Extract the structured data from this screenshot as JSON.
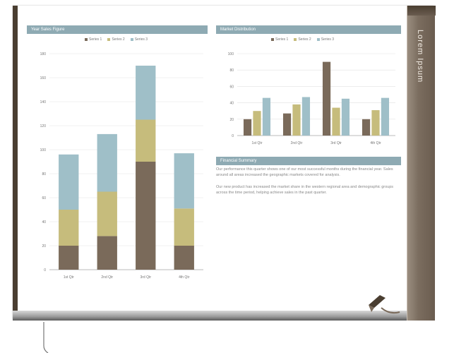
{
  "slide": {
    "side_title": "Lorem Ipsum",
    "left_panel_title": "Year Sales Figure",
    "right_panel_title": "Market Distribution",
    "notes_title": "Financial Summary",
    "notes": [
      "Our performance this quarter shows one of our most successful months during the financial year. Sales around all areas increased the geographic markets covered for analysis.",
      "Our new product has increased the market share in the western regional area and demographic groups across the time period, helping achieve sales in the past quarter."
    ]
  },
  "legend": [
    "Series 1",
    "Series 2",
    "Series 3"
  ],
  "colors": {
    "s1": "#7a6a5a",
    "s2": "#c6bc7c",
    "s3": "#9fbfc8",
    "header": "#8eaab3",
    "frame": "#4a3e31"
  },
  "chart_data": [
    {
      "type": "bar",
      "stacked": true,
      "title": "Year Sales Figure",
      "categories": [
        "1st Qtr",
        "2nd Qtr",
        "3rd Qtr",
        "4th Qtr"
      ],
      "series": [
        {
          "name": "Series 1",
          "values": [
            20,
            28,
            90,
            20
          ]
        },
        {
          "name": "Series 2",
          "values": [
            30,
            37,
            35,
            31
          ]
        },
        {
          "name": "Series 3",
          "values": [
            46,
            48,
            45,
            46
          ]
        }
      ],
      "ylim": [
        0,
        180
      ],
      "yticks": [
        0,
        20,
        40,
        60,
        80,
        100,
        120,
        140,
        160,
        180
      ],
      "grid": true,
      "legend_position": "top"
    },
    {
      "type": "bar",
      "stacked": false,
      "title": "Market Distribution",
      "categories": [
        "1st Qtr",
        "2nd Qtr",
        "3rd Qtr",
        "4th Qtr"
      ],
      "series": [
        {
          "name": "Series 1",
          "values": [
            20,
            27,
            90,
            20
          ]
        },
        {
          "name": "Series 2",
          "values": [
            30,
            38,
            34,
            31
          ]
        },
        {
          "name": "Series 3",
          "values": [
            46,
            47,
            45,
            46
          ]
        }
      ],
      "ylim": [
        0,
        100
      ],
      "yticks": [
        0,
        20,
        40,
        60,
        80,
        100
      ],
      "grid": true,
      "legend_position": "top"
    }
  ]
}
